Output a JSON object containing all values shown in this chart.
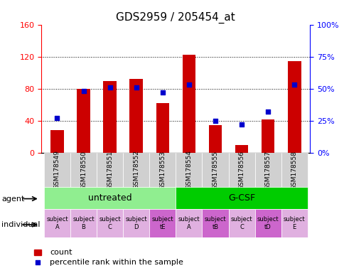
{
  "title": "GDS2959 / 205454_at",
  "samples": [
    "GSM178549",
    "GSM178550",
    "GSM178551",
    "GSM178552",
    "GSM178553",
    "GSM178554",
    "GSM178555",
    "GSM178556",
    "GSM178557",
    "GSM178558"
  ],
  "counts": [
    28,
    80,
    90,
    92,
    62,
    122,
    35,
    10,
    42,
    114
  ],
  "percentiles": [
    27,
    48,
    51,
    51,
    47,
    53,
    25,
    22,
    32,
    53
  ],
  "ylim_left": [
    0,
    160
  ],
  "ylim_right": [
    0,
    100
  ],
  "yticks_left": [
    0,
    40,
    80,
    120,
    160
  ],
  "yticks_right": [
    0,
    25,
    50,
    75,
    100
  ],
  "ytick_labels_left": [
    "0",
    "40",
    "80",
    "120",
    "160"
  ],
  "ytick_labels_right": [
    "0%",
    "25%",
    "50%",
    "75%",
    "100%"
  ],
  "bar_color": "#cc0000",
  "dot_color": "#0000cc",
  "agent_groups": [
    {
      "label": "untreated",
      "start": 0,
      "end": 5,
      "color": "#90ee90"
    },
    {
      "label": "G-CSF",
      "start": 5,
      "end": 10,
      "color": "#00cc00"
    }
  ],
  "individual_labels": [
    "subject\nA",
    "subject\nB",
    "subject\nC",
    "subject\nD",
    "subject\ntE",
    "subject\nA",
    "subject\ntB",
    "subject\nC",
    "subject\ntD",
    "subject\nE"
  ],
  "individual_highlight": [
    4,
    6,
    8
  ],
  "individual_color_normal": "#e0b0e0",
  "individual_color_highlight": "#cc66cc",
  "tick_area_color": "#d0d0d0",
  "grid_dotted_at": [
    40,
    80,
    120
  ]
}
